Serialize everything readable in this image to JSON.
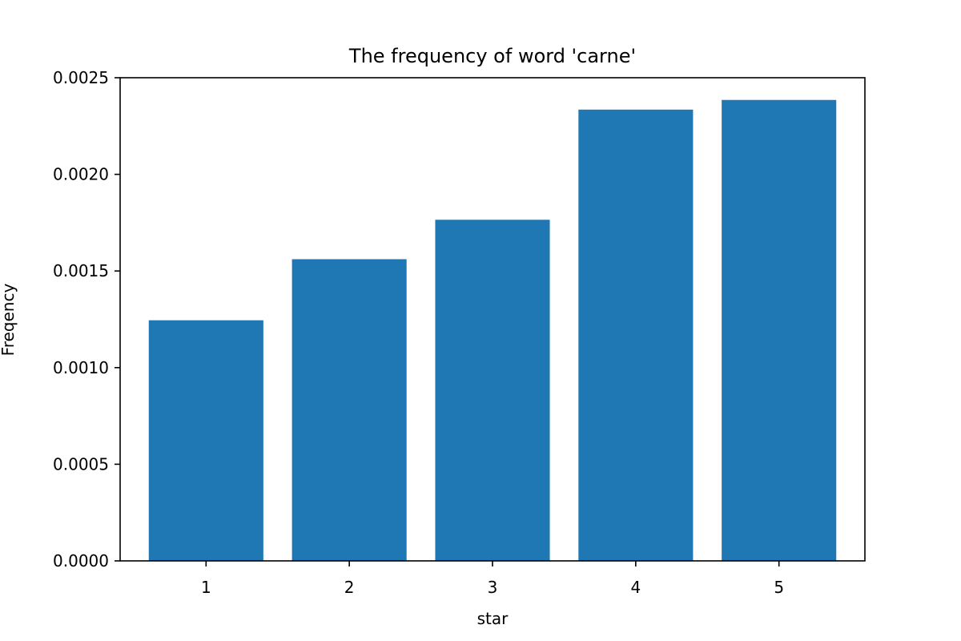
{
  "chart_data": {
    "type": "bar",
    "title": "The frequency of word 'carne'",
    "xlabel": "star",
    "ylabel": "Freqency",
    "categories": [
      "1",
      "2",
      "3",
      "4",
      "5"
    ],
    "values": [
      0.001245,
      0.001561,
      0.001765,
      0.002335,
      0.002385
    ],
    "ylim": [
      0,
      0.0025
    ],
    "yticks": [
      "0.0000",
      "0.0005",
      "0.0010",
      "0.0015",
      "0.0020",
      "0.0025"
    ],
    "bar_color": "#1f77b4",
    "grid": false,
    "legend": false
  }
}
